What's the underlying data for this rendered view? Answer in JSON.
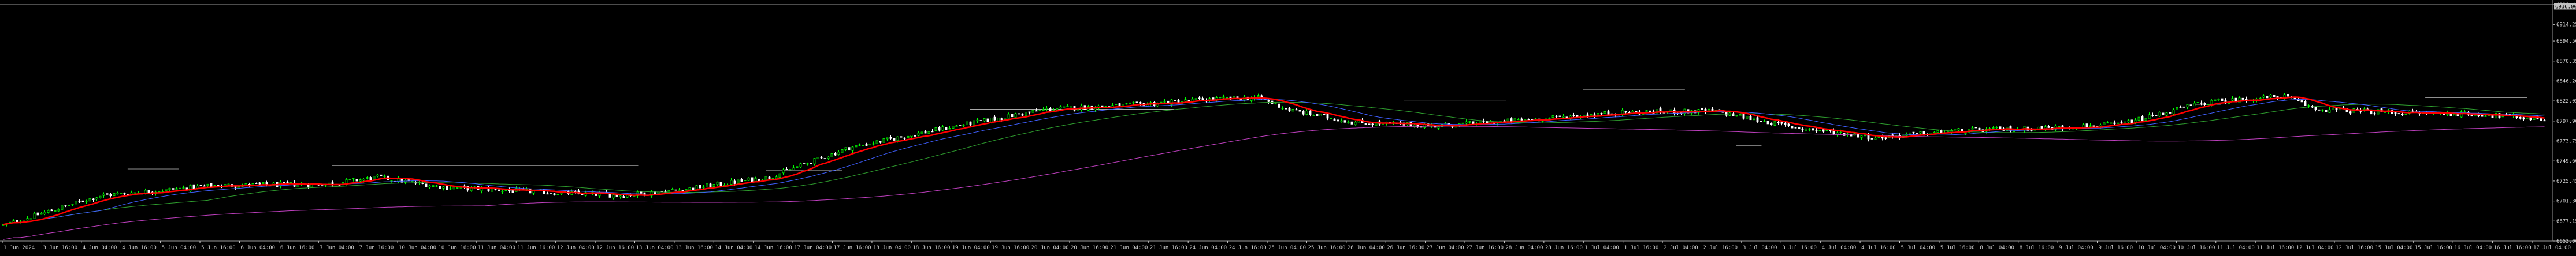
{
  "chart_data": {
    "type": "candlestick",
    "title": "",
    "background": "#000000",
    "colors": {
      "up": "#00ff00",
      "down": "#ffffff",
      "ma_fast": "#ff0000",
      "ma_mid": "#3f5fff",
      "ma_slow": "#2f9f2f",
      "ma_long": "#c040c0",
      "levels": "#c0c0c0",
      "axis_text": "#d0d0d0",
      "grid": "#202020"
    },
    "y_axis": {
      "ticks": [
        "6938.40",
        "6914.25",
        "6894.50",
        "6870.35",
        "6846.20",
        "6822.05",
        "6797.90",
        "6773.75",
        "6749.60",
        "6725.45",
        "6701.30",
        "6677.15",
        "6653.00"
      ],
      "current_price": "6936.00",
      "current_price_label": "6936.00"
    },
    "x_axis": {
      "ticks": [
        "1 Jun 2024",
        "3 Jun 16:00",
        "4 Jun 04:00",
        "4 Jun 16:00",
        "5 Jun 04:00",
        "5 Jun 16:00",
        "6 Jun 04:00",
        "6 Jun 16:00",
        "7 Jun 04:00",
        "7 Jun 16:00",
        "10 Jun 04:00",
        "10 Jun 16:00",
        "11 Jun 04:00",
        "11 Jun 16:00",
        "12 Jun 04:00",
        "12 Jun 16:00",
        "13 Jun 04:00",
        "13 Jun 16:00",
        "14 Jun 04:00",
        "14 Jun 16:00",
        "17 Jun 04:00",
        "17 Jun 16:00",
        "18 Jun 04:00",
        "18 Jun 16:00",
        "19 Jun 04:00",
        "19 Jun 16:00",
        "20 Jun 04:00",
        "20 Jun 16:00",
        "21 Jun 04:00",
        "21 Jun 16:00",
        "24 Jun 04:00",
        "24 Jun 16:00",
        "25 Jun 04:00",
        "25 Jun 16:00",
        "26 Jun 04:00",
        "26 Jun 16:00",
        "27 Jun 04:00",
        "27 Jun 16:00",
        "28 Jun 04:00",
        "28 Jun 16:00",
        "1 Jul 04:00",
        "1 Jul 16:00",
        "2 Jul 04:00",
        "2 Jul 16:00",
        "3 Jul 04:00",
        "3 Jul 16:00",
        "4 Jul 04:00",
        "4 Jul 16:00",
        "5 Jul 04:00",
        "5 Jul 16:00",
        "8 Jul 04:00",
        "8 Jul 16:00",
        "9 Jul 04:00",
        "9 Jul 16:00",
        "10 Jul 04:00",
        "10 Jul 16:00",
        "11 Jul 04:00",
        "11 Jul 16:00",
        "12 Jul 04:00",
        "12 Jul 16:00",
        "15 Jul 04:00",
        "15 Jul 16:00",
        "16 Jul 04:00",
        "16 Jul 16:00",
        "17 Jul 04:00"
      ]
    },
    "trend_path": [
      [
        0,
        6672
      ],
      [
        60,
        6708
      ],
      [
        130,
        6720
      ],
      [
        200,
        6722
      ],
      [
        230,
        6730
      ],
      [
        270,
        6718
      ],
      [
        330,
        6712
      ],
      [
        380,
        6708
      ],
      [
        420,
        6716
      ],
      [
        470,
        6730
      ],
      [
        520,
        6766
      ],
      [
        580,
        6790
      ],
      [
        640,
        6812
      ],
      [
        690,
        6817
      ],
      [
        740,
        6824
      ],
      [
        770,
        6826
      ],
      [
        790,
        6811
      ],
      [
        830,
        6796
      ],
      [
        880,
        6792
      ],
      [
        940,
        6800
      ],
      [
        990,
        6808
      ],
      [
        1050,
        6810
      ],
      [
        1100,
        6790
      ],
      [
        1150,
        6778
      ],
      [
        1200,
        6786
      ],
      [
        1260,
        6790
      ],
      [
        1300,
        6794
      ],
      [
        1350,
        6820
      ],
      [
        1400,
        6828
      ],
      [
        1420,
        6812
      ],
      [
        1470,
        6808
      ],
      [
        1520,
        6806
      ],
      [
        1560,
        6800
      ]
    ],
    "level_lines": [
      [
        0.13,
        0.25,
        6744
      ],
      [
        0.05,
        0.07,
        6740
      ],
      [
        0.3,
        0.33,
        6738
      ],
      [
        0.38,
        0.46,
        6812
      ],
      [
        0.55,
        0.59,
        6822
      ],
      [
        0.62,
        0.66,
        6836
      ],
      [
        0.68,
        0.69,
        6768
      ],
      [
        0.73,
        0.76,
        6764
      ],
      [
        0.86,
        0.87,
        6818
      ],
      [
        0.95,
        0.99,
        6826
      ]
    ]
  }
}
